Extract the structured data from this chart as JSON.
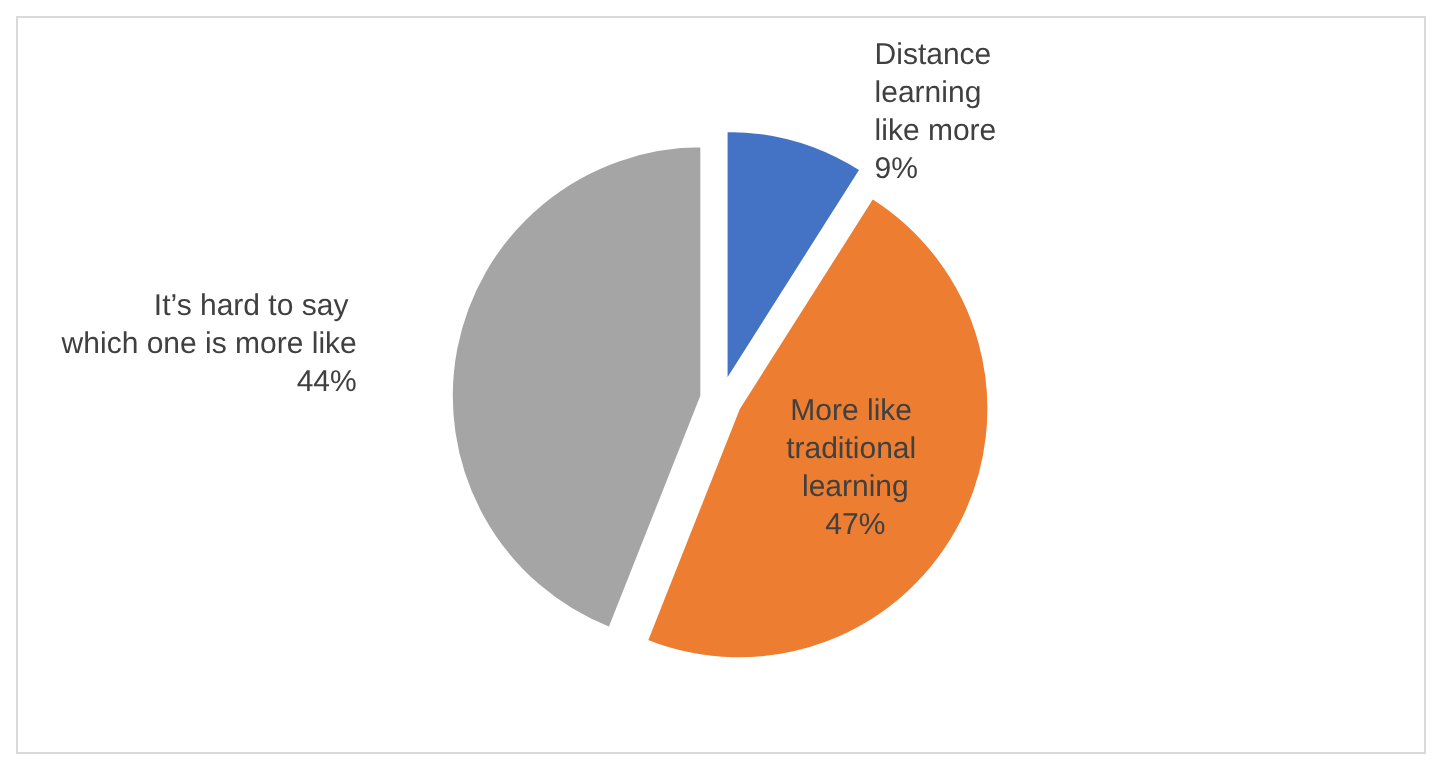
{
  "chart_data": {
    "type": "pie",
    "categories": [
      "Distance learning like more",
      "More like traditional learning",
      "It’s hard to say which one is more like"
    ],
    "values": [
      9,
      47,
      44
    ],
    "colors": [
      "#4472c4",
      "#ed7d31",
      "#a5a5a5"
    ],
    "value_labels": [
      "9%",
      "47%",
      "44%"
    ],
    "legend": false
  }
}
